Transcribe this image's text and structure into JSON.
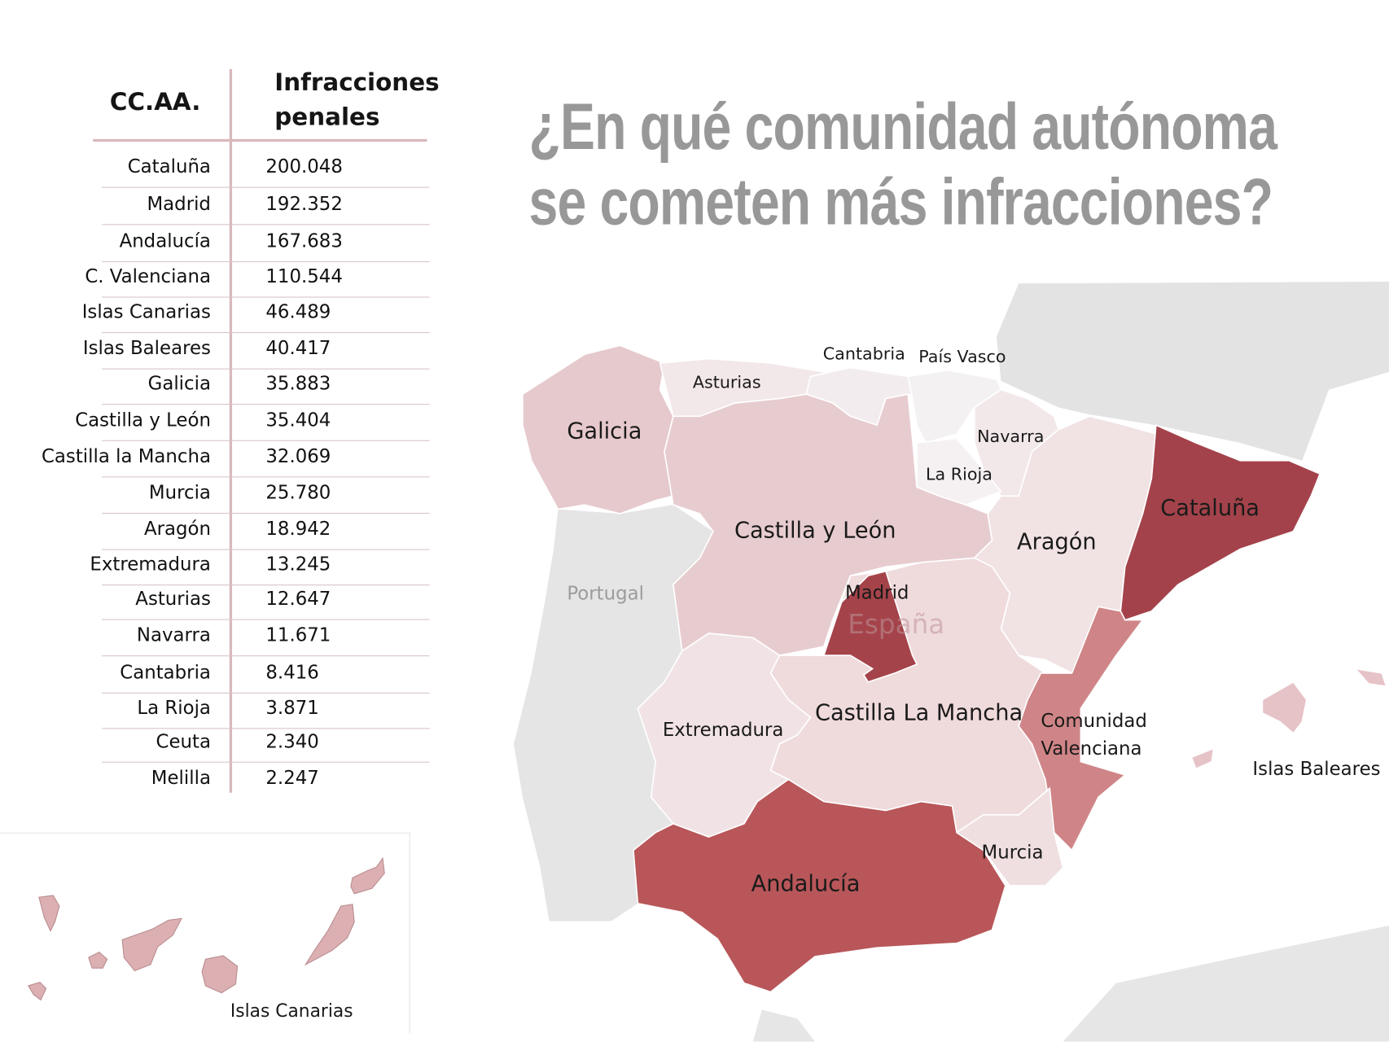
{
  "title": {
    "line1": "¿En qué comunidad autónoma",
    "line2": "se cometen más infracciones?"
  },
  "table": {
    "header_region": "CC.AA.",
    "header_value_line1": "Infracciones",
    "header_value_line2": "penales",
    "rows": [
      {
        "region": "Cataluña",
        "value": "200.048"
      },
      {
        "region": "Madrid",
        "value": "192.352"
      },
      {
        "region": "Andalucía",
        "value": "167.683"
      },
      {
        "region": "C. Valenciana",
        "value": "110.544"
      },
      {
        "region": "Islas Canarias",
        "value": "46.489"
      },
      {
        "region": "Islas Baleares",
        "value": "40.417"
      },
      {
        "region": "Galicia",
        "value": "35.883"
      },
      {
        "region": "Castilla y León",
        "value": "35.404"
      },
      {
        "region": "Castilla la Mancha",
        "value": "32.069"
      },
      {
        "region": "Murcia",
        "value": "25.780"
      },
      {
        "region": "Aragón",
        "value": "18.942"
      },
      {
        "region": "Extremadura",
        "value": "13.245"
      },
      {
        "region": "Asturias",
        "value": "12.647"
      },
      {
        "region": "Navarra",
        "value": "11.671"
      },
      {
        "region": "Cantabria",
        "value": "8.416"
      },
      {
        "region": "La Rioja",
        "value": "3.871"
      },
      {
        "region": "Ceuta",
        "value": "2.340"
      },
      {
        "region": "Melilla",
        "value": "2.247"
      }
    ]
  },
  "map": {
    "labels": {
      "galicia": "Galicia",
      "asturias": "Asturias",
      "cantabria": "Cantabria",
      "pais_vasco": "País Vasco",
      "navarra": "Navarra",
      "la_rioja": "La Rioja",
      "castilla_leon": "Castilla y León",
      "aragon": "Aragón",
      "cataluna": "Cataluña",
      "madrid": "Madrid",
      "espana": "España",
      "portugal": "Portugal",
      "castilla_mancha": "Castilla La Mancha",
      "extremadura": "Extremadura",
      "valenciana_1": "Comunidad",
      "valenciana_2": "Valenciana",
      "murcia": "Murcia",
      "andalucia": "Andalucía",
      "baleares": "Islas Baleares",
      "canarias": "Islas Canarias"
    },
    "colors": {
      "cataluna": "#a3424a",
      "madrid": "#a5434a",
      "andalucia": "#b85659",
      "valenciana": "#cf8587",
      "canarias": "#dcb0b2",
      "baleares": "#e6c3c7",
      "galicia": "#e6c9cc",
      "castilla_leon": "#e7cccf",
      "castilla_mancha": "#efdadc",
      "murcia": "#f0dfe1",
      "aragon": "#f1e2e4",
      "extremadura": "#f1e3e5",
      "asturias": "#f2e7e9",
      "navarra": "#f2e8ea",
      "cantabria": "#f3ecee",
      "la_rioja": "#f5f1f2",
      "pais_vasco": "#f3f1f2",
      "land_background": "#e2e2e2"
    }
  }
}
